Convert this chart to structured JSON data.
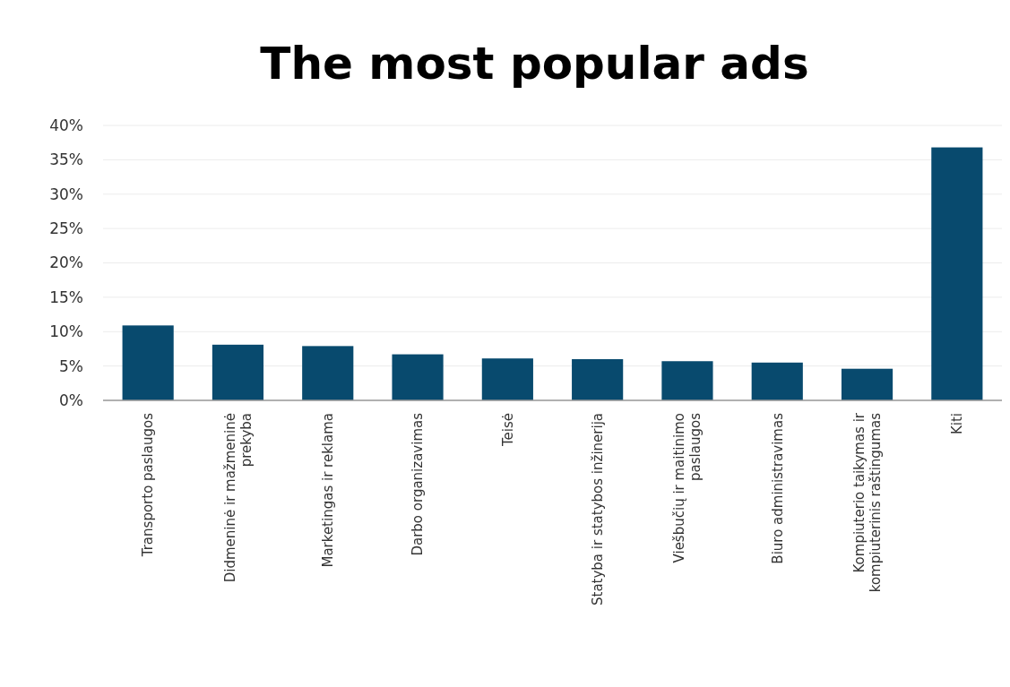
{
  "chart_data": {
    "type": "bar",
    "title": "The most popular ads",
    "categories": [
      "Transporto paslaugos",
      "Didmeninė ir mažmeninė prekyba",
      "Marketingas ir reklama",
      "Darbo organizavimas",
      "Teisė",
      "Statyba ir statybos inžinerija",
      "Viešbučių ir maitinimo paslaugos",
      "Biuro administravimas",
      "Kompiuterio taikymas ir kompiuterinis raštingumas",
      "Kiti"
    ],
    "values": [
      10.9,
      8.1,
      7.9,
      6.7,
      6.1,
      6.0,
      5.7,
      5.5,
      4.6,
      36.8
    ],
    "color": "#084a6e",
    "ylim": [
      0,
      40
    ],
    "yticks": [
      {
        "value": 0,
        "label": "0%"
      },
      {
        "value": 5,
        "label": "5%"
      },
      {
        "value": 10,
        "label": "10%"
      },
      {
        "value": 15,
        "label": "15%"
      },
      {
        "value": 20,
        "label": "20%"
      },
      {
        "value": 25,
        "label": "25%"
      },
      {
        "value": 30,
        "label": "30%"
      },
      {
        "value": 35,
        "label": "35%"
      },
      {
        "value": 40,
        "label": "40%"
      }
    ],
    "grid": "y"
  }
}
